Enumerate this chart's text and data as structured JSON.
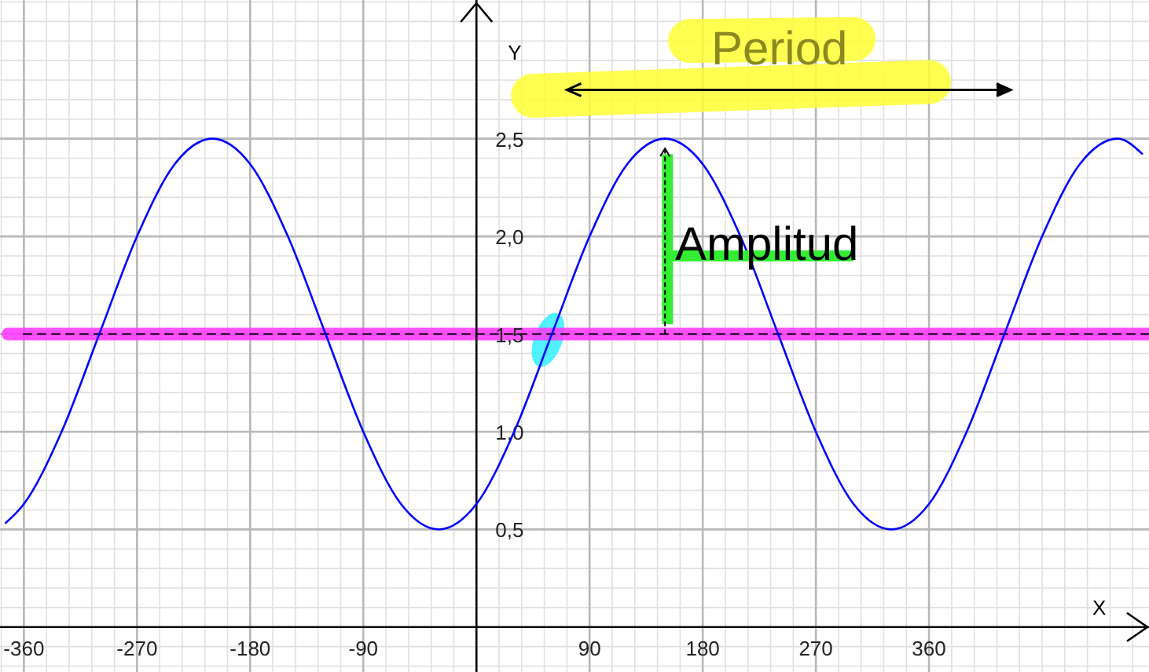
{
  "chart_data": {
    "type": "line",
    "xlabel": "X",
    "ylabel": "Y",
    "x": [
      -375,
      -360,
      -330,
      -300,
      -270,
      -240,
      -210,
      -180,
      -150,
      -120,
      -90,
      -60,
      -30,
      0,
      30,
      60,
      90,
      120,
      150,
      180,
      210,
      240,
      270,
      300,
      330,
      360,
      390,
      420,
      450,
      480,
      510,
      530
    ],
    "series": [
      {
        "color": "#0000ff",
        "values": [
          0.53,
          0.63,
          1.0,
          1.5,
          2.0,
          2.37,
          2.5,
          2.37,
          2.0,
          1.5,
          1.0,
          0.63,
          0.5,
          0.63,
          1.0,
          1.5,
          2.0,
          2.37,
          2.5,
          2.37,
          2.0,
          1.5,
          1.0,
          0.63,
          0.5,
          0.63,
          1.0,
          1.5,
          2.0,
          2.37,
          2.5,
          2.42
        ]
      }
    ],
    "xlim": [
      -379,
      535
    ],
    "ylim": [
      -0.23,
      3.21
    ],
    "xticks": [
      -360,
      -270,
      -180,
      -90,
      90,
      180,
      270,
      360
    ],
    "yticks": [
      {
        "value": 0.5,
        "label": "0,5"
      },
      {
        "value": 1.0,
        "label": "1,0"
      },
      {
        "value": 1.5,
        "label": "1,5"
      },
      {
        "value": 2.0,
        "label": "2,0"
      },
      {
        "value": 2.5,
        "label": "2,5"
      }
    ],
    "grid": true,
    "marker": "none",
    "line_style": "solid",
    "ref_lines": [
      {
        "axis": "y",
        "value": 1.5,
        "color": "#ff33ff",
        "line_style": "solid"
      },
      {
        "axis": "y",
        "value": 1.5,
        "color": "#000000",
        "line_style": "dashed"
      }
    ],
    "annotations": [
      "Period",
      "Amplitud"
    ]
  }
}
